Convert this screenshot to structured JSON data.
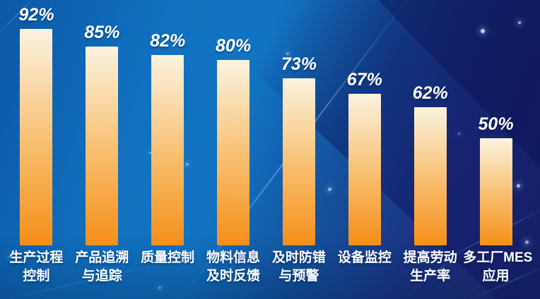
{
  "chart_data": {
    "type": "bar",
    "title": "",
    "categories": [
      "生产过程控制",
      "产品追溯与追踪",
      "质量控制",
      "物料信息及时反馈",
      "及时防错与预警",
      "设备监控",
      "提高劳动生产率",
      "多工厂MES应用"
    ],
    "category_lines": [
      [
        "生产过程",
        "控制"
      ],
      [
        "产品追溯",
        "与追踪"
      ],
      [
        "质量控制"
      ],
      [
        "物料信息",
        "及时反馈"
      ],
      [
        "及时防错",
        "与预警"
      ],
      [
        "设备监控"
      ],
      [
        "提高劳动",
        "生产率"
      ],
      [
        "多工厂MES",
        "应用"
      ]
    ],
    "values": [
      92,
      85,
      82,
      80,
      73,
      67,
      62,
      50
    ],
    "value_labels": [
      "92%",
      "85%",
      "82%",
      "80%",
      "73%",
      "67%",
      "62%",
      "50%"
    ],
    "unit": "%",
    "ylim": [
      0,
      100
    ],
    "grid": false,
    "legend_position": "none",
    "bar_gradient": {
      "top": "#fbf3e0",
      "mid": "#f8bd6b",
      "bottom": "#f68e18"
    },
    "value_label_color": "#ffffff",
    "category_label_color": "#ffffff"
  },
  "background": {
    "left_blue": "#0b58a6",
    "center_blue": "#1173c2",
    "right_navy": "#1f2a6f",
    "accent_line_blue": "#82c8fa"
  }
}
